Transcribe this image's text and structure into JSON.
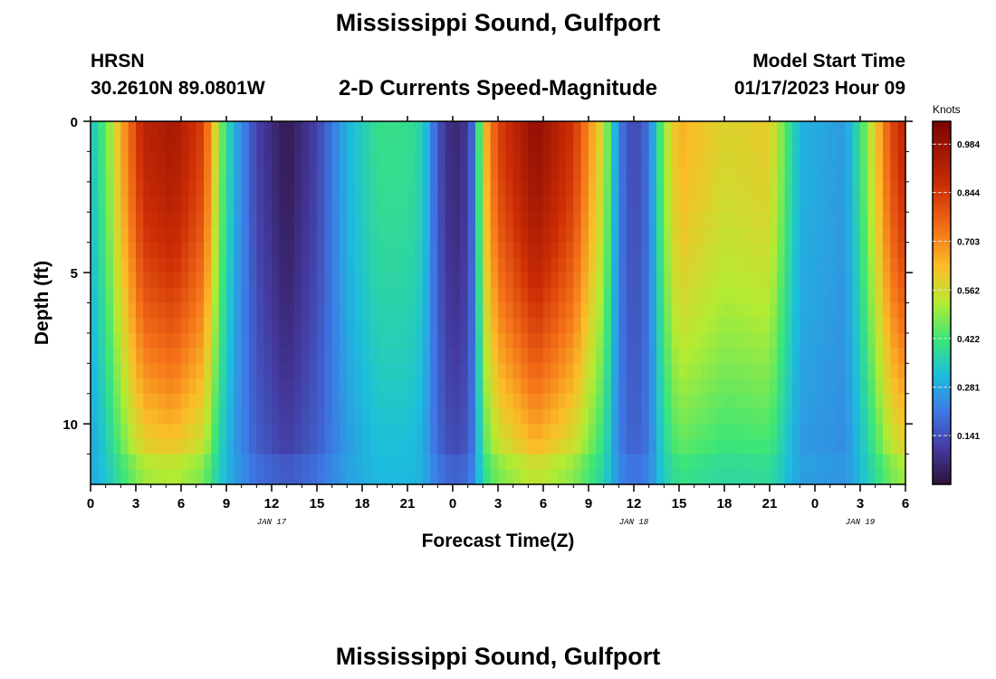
{
  "header": {
    "title": "Mississippi Sound, Gulfport",
    "station_id": "HRSN",
    "station_coords": "30.2610N  89.0801W",
    "subtitle": "2-D Currents Speed-Magnitude",
    "model_start_label": "Model Start Time",
    "model_start_value": "01/17/2023 Hour 09"
  },
  "footer": {
    "title": "Mississippi Sound, Gulfport"
  },
  "chart_data": {
    "type": "heatmap",
    "title": "2-D Currents Speed-Magnitude",
    "xlabel": "Forecast Time(Z)",
    "ylabel": "Depth (ft)",
    "colorbar_label": "Knots",
    "x_range_hours": [
      0,
      54
    ],
    "y_range_ft": [
      0,
      12
    ],
    "y_inverted": true,
    "x_tick_hours": [
      0,
      3,
      6,
      9,
      12,
      15,
      18,
      21,
      24,
      27,
      30,
      33,
      36,
      39,
      42,
      45,
      48,
      51,
      54
    ],
    "x_tick_labels": [
      "0",
      "3",
      "6",
      "9",
      "12",
      "15",
      "18",
      "21",
      "0",
      "3",
      "6",
      "9",
      "12",
      "15",
      "18",
      "21",
      "0",
      "3",
      "6"
    ],
    "y_ticks": [
      0,
      5,
      10
    ],
    "y_tick_labels": [
      "0",
      "5",
      "10"
    ],
    "day_labels": [
      {
        "text": "JAN 17",
        "hour": 12
      },
      {
        "text": "JAN 18",
        "hour": 36
      },
      {
        "text": "JAN 19",
        "hour": 51
      }
    ],
    "colorbar": {
      "min": 0.0,
      "max": 1.05,
      "ticks": [
        0.141,
        0.281,
        0.422,
        0.562,
        0.703,
        0.844,
        0.984
      ],
      "tick_labels": [
        "0.141",
        "0.281",
        "0.422",
        "0.562",
        "0.703",
        "0.844",
        "0.984"
      ],
      "colormap": "turbo"
    },
    "surface_speed_profile": [
      {
        "hour": 0,
        "knots": 0.32
      },
      {
        "hour": 1,
        "knots": 0.45
      },
      {
        "hour": 2,
        "knots": 0.65
      },
      {
        "hour": 3.5,
        "knots": 0.9
      },
      {
        "hour": 5.5,
        "knots": 0.95
      },
      {
        "hour": 7.5,
        "knots": 0.82
      },
      {
        "hour": 8.5,
        "knots": 0.5
      },
      {
        "hour": 9.5,
        "knots": 0.3
      },
      {
        "hour": 11,
        "knots": 0.12
      },
      {
        "hour": 13,
        "knots": 0.02
      },
      {
        "hour": 15,
        "knots": 0.12
      },
      {
        "hour": 17,
        "knots": 0.3
      },
      {
        "hour": 19,
        "knots": 0.4
      },
      {
        "hour": 21,
        "knots": 0.4
      },
      {
        "hour": 22,
        "knots": 0.36
      },
      {
        "hour": 23,
        "knots": 0.15
      },
      {
        "hour": 24,
        "knots": 0.05
      },
      {
        "hour": 25,
        "knots": 0.1
      },
      {
        "hour": 25.5,
        "knots": 0.25
      },
      {
        "hour": 26,
        "knots": 0.6
      },
      {
        "hour": 27,
        "knots": 0.82
      },
      {
        "hour": 29.5,
        "knots": 1.0
      },
      {
        "hour": 32,
        "knots": 0.85
      },
      {
        "hour": 34,
        "knots": 0.55
      },
      {
        "hour": 35,
        "knots": 0.22
      },
      {
        "hour": 36,
        "knots": 0.12
      },
      {
        "hour": 37,
        "knots": 0.2
      },
      {
        "hour": 38,
        "knots": 0.5
      },
      {
        "hour": 39,
        "knots": 0.65
      },
      {
        "hour": 42,
        "knots": 0.58
      },
      {
        "hour": 45,
        "knots": 0.6
      },
      {
        "hour": 46,
        "knots": 0.45
      },
      {
        "hour": 47,
        "knots": 0.3
      },
      {
        "hour": 50,
        "knots": 0.26
      },
      {
        "hour": 51,
        "knots": 0.4
      },
      {
        "hour": 53,
        "knots": 0.8
      },
      {
        "hour": 54,
        "knots": 0.9
      }
    ],
    "bottom_speed_factor": 0.45
  }
}
